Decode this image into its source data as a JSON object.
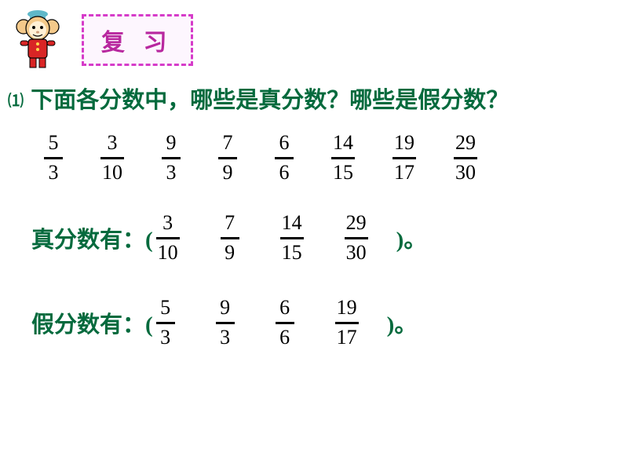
{
  "header": {
    "review_label": "复 习"
  },
  "question": {
    "num": "⑴",
    "text": "下面各分数中，哪些是真分数？哪些是假分数？"
  },
  "fractions": [
    {
      "n": "5",
      "d": "3"
    },
    {
      "n": "3",
      "d": "10"
    },
    {
      "n": "9",
      "d": "3"
    },
    {
      "n": "7",
      "d": "9"
    },
    {
      "n": "6",
      "d": "6"
    },
    {
      "n": "14",
      "d": "15"
    },
    {
      "n": "19",
      "d": "17"
    },
    {
      "n": "29",
      "d": "30"
    }
  ],
  "proper": {
    "label": "真分数有：(",
    "items": [
      {
        "n": "3",
        "d": "10"
      },
      {
        "n": "7",
        "d": "9"
      },
      {
        "n": "14",
        "d": "15"
      },
      {
        "n": "29",
        "d": "30"
      }
    ],
    "close": ")。"
  },
  "improper": {
    "label": "假分数有：(",
    "items": [
      {
        "n": "5",
        "d": "3"
      },
      {
        "n": "9",
        "d": "3"
      },
      {
        "n": "6",
        "d": "6"
      },
      {
        "n": "19",
        "d": "17"
      }
    ],
    "close": ")。"
  },
  "colors": {
    "text_green": "#046a3d",
    "review_purple": "#b8289f",
    "review_border": "#d63cc9",
    "bg": "#ffffff"
  }
}
